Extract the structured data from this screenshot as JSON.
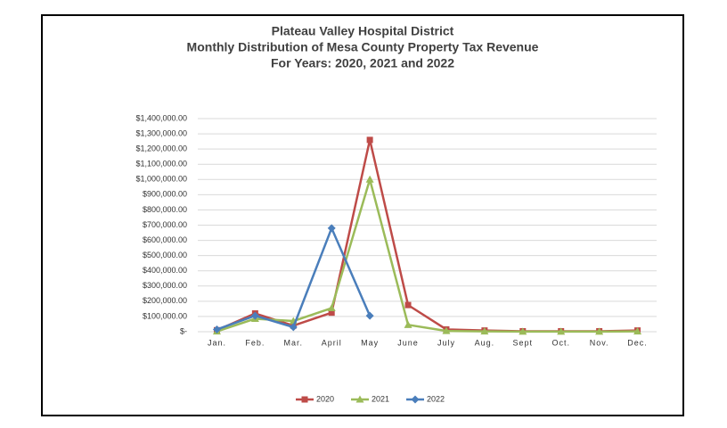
{
  "chart_data": {
    "type": "line",
    "title": [
      "Plateau Valley Hospital District",
      "Monthly Distribution of Mesa County Property Tax Revenue",
      "For Years:  2020, 2021 and 2022"
    ],
    "categories": [
      "Jan.",
      "Feb.",
      "Mar.",
      "April",
      "May",
      "June",
      "July",
      "Aug.",
      "Sept",
      "Oct.",
      "Nov.",
      "Dec."
    ],
    "series": [
      {
        "name": "2020",
        "color": "#be4b48",
        "marker": "square",
        "values": [
          10000,
          120000,
          40000,
          125000,
          1260000,
          175000,
          15000,
          8000,
          3000,
          3000,
          3000,
          8000
        ]
      },
      {
        "name": "2021",
        "color": "#9bbb59",
        "marker": "triangle",
        "values": [
          2000,
          85000,
          70000,
          155000,
          1000000,
          45000,
          5000,
          2000,
          1000,
          1000,
          1000,
          2000
        ]
      },
      {
        "name": "2022",
        "color": "#4a7ebb",
        "marker": "diamond",
        "values": [
          15000,
          105000,
          30000,
          680000,
          105000,
          null,
          null,
          null,
          null,
          null,
          null,
          null
        ]
      }
    ],
    "ylim": [
      0,
      1400000
    ],
    "yticks": [
      {
        "value": 0,
        "label": "$-"
      },
      {
        "value": 100000,
        "label": "$100,000.00"
      },
      {
        "value": 200000,
        "label": "$200,000.00"
      },
      {
        "value": 300000,
        "label": "$300,000.00"
      },
      {
        "value": 400000,
        "label": "$400,000.00"
      },
      {
        "value": 500000,
        "label": "$500,000.00"
      },
      {
        "value": 600000,
        "label": "$600,000.00"
      },
      {
        "value": 700000,
        "label": "$700,000.00"
      },
      {
        "value": 800000,
        "label": "$800,000.00"
      },
      {
        "value": 900000,
        "label": "$900,000.00"
      },
      {
        "value": 1000000,
        "label": "$1,000,000.00"
      },
      {
        "value": 1100000,
        "label": "$1,100,000.00"
      },
      {
        "value": 1200000,
        "label": "$1,200,000.00"
      },
      {
        "value": 1300000,
        "label": "$1,300,000.00"
      },
      {
        "value": 1400000,
        "label": "$1,400,000.00"
      }
    ],
    "grid": true
  }
}
